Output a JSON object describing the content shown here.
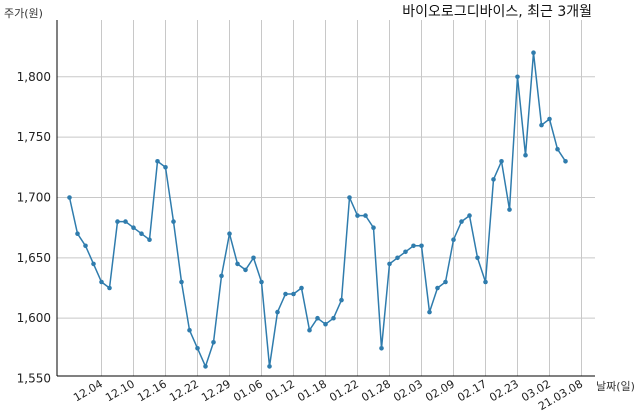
{
  "chart_data": {
    "type": "line",
    "title": "바이오로그디바이스, 최근 3개월",
    "ylabel": "주가(원)",
    "xlabel": "날짜(일)",
    "ylim": [
      1550,
      1845
    ],
    "y_ticks": [
      1550,
      1600,
      1650,
      1700,
      1750,
      1800
    ],
    "y_tick_labels": [
      "1,550",
      "1,600",
      "1,650",
      "1,700",
      "1,750",
      "1,800"
    ],
    "grid": true,
    "x_ticks": [
      {
        "date": "12.04",
        "index": 2
      },
      {
        "date": "12.10",
        "index": 6
      },
      {
        "date": "12.16",
        "index": 10
      },
      {
        "date": "12.22",
        "index": 14
      },
      {
        "date": "12.29",
        "index": 18
      },
      {
        "date": "01.06",
        "index": 22
      },
      {
        "date": "01.12",
        "index": 26
      },
      {
        "date": "01.18",
        "index": 30
      },
      {
        "date": "01.22",
        "index": 34
      },
      {
        "date": "01.28",
        "index": 38
      },
      {
        "date": "02.03",
        "index": 42
      },
      {
        "date": "02.09",
        "index": 46
      },
      {
        "date": "02.17",
        "index": 50
      },
      {
        "date": "02.23",
        "index": 54
      },
      {
        "date": "03.02",
        "index": 58
      },
      {
        "date": "21.03.08",
        "index": 62
      }
    ],
    "values": [
      1700,
      1670,
      1660,
      1645,
      1630,
      1625,
      1680,
      1680,
      1675,
      1670,
      1665,
      1730,
      1725,
      1680,
      1630,
      1590,
      1575,
      1560,
      1580,
      1635,
      1670,
      1645,
      1640,
      1650,
      1630,
      1560,
      1605,
      1620,
      1620,
      1625,
      1590,
      1600,
      1595,
      1600,
      1615,
      1700,
      1685,
      1685,
      1675,
      1575,
      1645,
      1650,
      1655,
      1660,
      1660,
      1605,
      1625,
      1630,
      1665,
      1680,
      1685,
      1650,
      1630,
      1715,
      1730,
      1690,
      1800,
      1735,
      1820,
      1760,
      1765,
      1740,
      1730
    ]
  }
}
